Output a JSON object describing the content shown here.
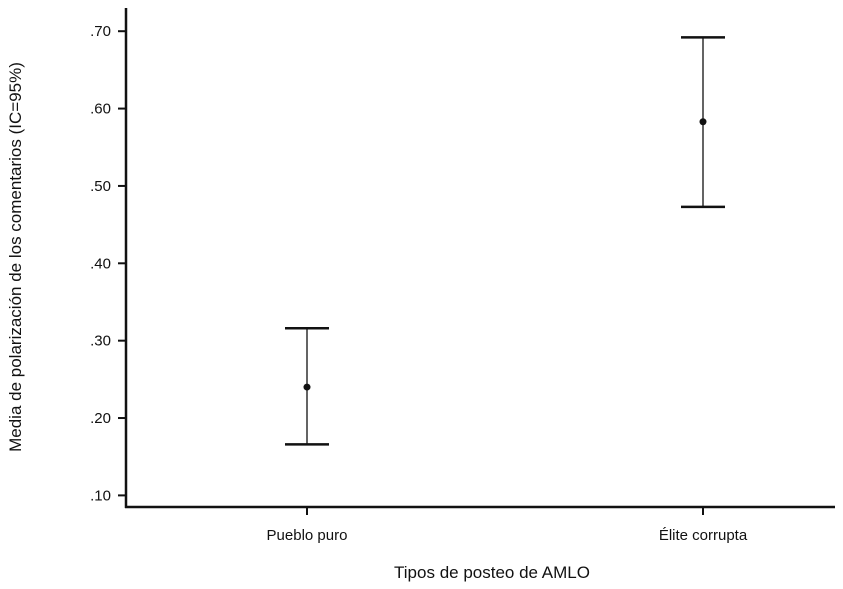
{
  "chart_data": {
    "type": "errorbar",
    "title": "",
    "xlabel": "Tipos de posteo de AMLO",
    "ylabel": "Media de polarización de los comentarios (IC=95%)",
    "categories": [
      "Pueblo puro",
      "Élite corrupta"
    ],
    "series": [
      {
        "means": [
          0.24,
          0.583
        ],
        "ci_lower": [
          0.166,
          0.473
        ],
        "ci_upper": [
          0.316,
          0.692
        ]
      }
    ],
    "ylim": [
      0.085,
      0.73
    ],
    "yticks": [
      0.1,
      0.2,
      0.3,
      0.4,
      0.5,
      0.6,
      0.7
    ],
    "ytick_labels": [
      ".10",
      ".20",
      ".30",
      ".40",
      ".50",
      ".60",
      ".70"
    ],
    "grid": false,
    "legend": "none",
    "colors": {
      "line": "#111111",
      "background": "#ffffff"
    }
  }
}
